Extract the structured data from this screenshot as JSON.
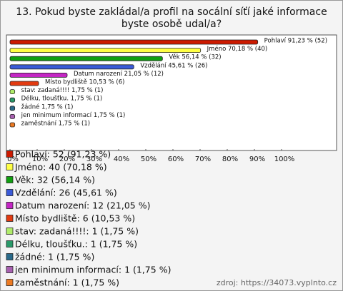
{
  "chart_data": {
    "type": "bar",
    "orientation": "horizontal",
    "title": "13. Pokud byste zakládal/a profil na socální síťí jaké informace byste osobě udal/a?",
    "categories": [
      "Pohlaví",
      "Jméno",
      "Věk",
      "Vzdělání",
      "Datum narození",
      "Místo bydliště",
      "stav: zadaná!!!!",
      "Délku, tloušťku.",
      "žádné",
      "jen minimum informací",
      "zaměstnání"
    ],
    "values": [
      91.23,
      70.18,
      56.14,
      45.61,
      21.05,
      10.53,
      1.75,
      1.75,
      1.75,
      1.75,
      1.75
    ],
    "value_labels": [
      "Pohlaví 91,23 % (52)",
      "Jméno 70,18 % (40)",
      "Věk 56,14 % (32)",
      "Vzdělání 45,61 % (26)",
      "Datum narození 21,05 % (12)",
      "Místo bydliště 10,53 % (6)",
      "stav: zadaná!!!! 1,75 % (1)",
      "Délku, tloušťku. 1,75 % (1)",
      "žádné 1,75 % (1)",
      "jen minimum informací 1,75 % (1)",
      "zaměstnání 1,75 % (1)"
    ],
    "colors": [
      "#cc1a00",
      "#ffff44",
      "#10a010",
      "#3a5ad8",
      "#c426c4",
      "#e23a10",
      "#b0ec6a",
      "#2a9a6a",
      "#2a6a8a",
      "#a860b0",
      "#ec7a22"
    ],
    "legend": [
      "Pohlaví: 52 (91,23 %)",
      "Jméno: 40 (70,18 %)",
      "Věk: 32 (56,14 %)",
      "Vzdělání: 26 (45,61 %)",
      "Datum narození: 12 (21,05 %)",
      "Místo bydliště: 6 (10,53 %)",
      "stav: zadaná!!!!: 1 (1,75 %)",
      "Délku, tloušťku.: 1 (1,75 %)",
      "žádné: 1 (1,75 %)",
      "jen minimum informací: 1 (1,75 %)",
      "zaměstnání: 1 (1,75 %)"
    ],
    "xlim": [
      0,
      120
    ],
    "xticks": [
      {
        "value": 0,
        "label": "0%"
      },
      {
        "value": 10,
        "label": "10%"
      },
      {
        "value": 20,
        "label": "20%"
      },
      {
        "value": 30,
        "label": "30%"
      },
      {
        "value": 40,
        "label": "40%"
      },
      {
        "value": 50,
        "label": "50%"
      },
      {
        "value": 60,
        "label": "60%"
      },
      {
        "value": 70,
        "label": "70%"
      },
      {
        "value": 80,
        "label": "80%"
      },
      {
        "value": 90,
        "label": "90%"
      },
      {
        "value": 100,
        "label": "100%"
      }
    ],
    "source": "zdroj: https://34073.vyplnto.cz"
  }
}
